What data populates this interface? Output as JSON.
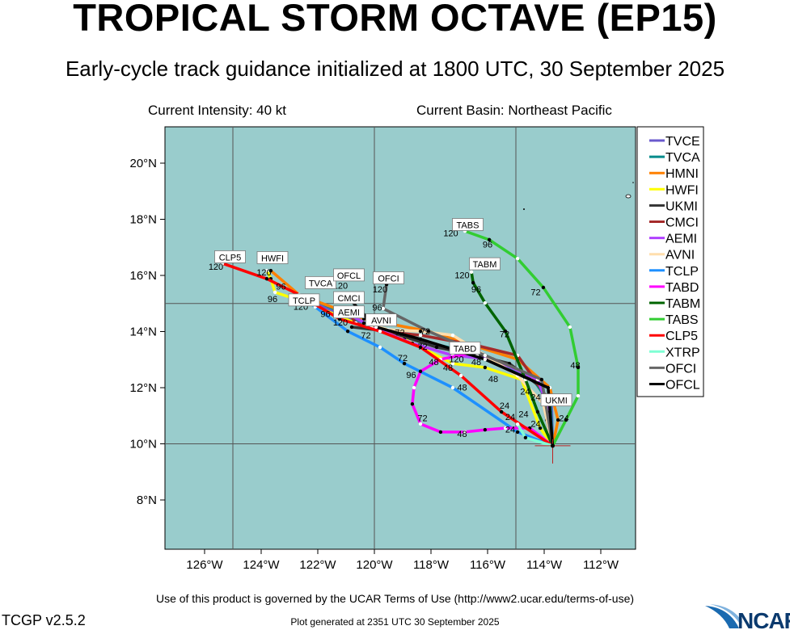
{
  "header": {
    "title": "TROPICAL STORM OCTAVE (EP15)",
    "subtitle": "Early-cycle track guidance initialized at 1800 UTC, 30 September 2025",
    "intensity": "Current Intensity: 40 kt",
    "basin": "Current Basin: Northeast Pacific"
  },
  "footer": {
    "terms": "Use of this product is governed by the UCAR Terms of Use (http://www2.ucar.edu/terms-of-use)",
    "version": "TCGP v2.5.2",
    "generated": "Plot generated at 2351 UTC   30 September 2025",
    "logo": "NCAR"
  },
  "chart_data": {
    "type": "map-track",
    "lon_range_W": [
      127.4,
      110.8
    ],
    "lat_range_N": [
      6.25,
      21.3
    ],
    "grid_lon_W": [
      125,
      120,
      115
    ],
    "grid_lat_N": [
      15,
      10
    ],
    "x_ticks": [
      {
        "v": 126,
        "label": "126°W"
      },
      {
        "v": 124,
        "label": "124°W"
      },
      {
        "v": 122,
        "label": "122°W"
      },
      {
        "v": 120,
        "label": "120°W"
      },
      {
        "v": 118,
        "label": "118°W"
      },
      {
        "v": 116,
        "label": "116°W"
      },
      {
        "v": 114,
        "label": "114°W"
      },
      {
        "v": 112,
        "label": "112°W"
      }
    ],
    "y_ticks": [
      {
        "v": 20,
        "label": "20°N"
      },
      {
        "v": 18,
        "label": "18°N"
      },
      {
        "v": 16,
        "label": "16°N"
      },
      {
        "v": 14,
        "label": "14°N"
      },
      {
        "v": 12,
        "label": "12°N"
      },
      {
        "v": 10,
        "label": "10°N"
      },
      {
        "v": 8,
        "label": "8°N"
      }
    ],
    "ocean_color": "#99cccc",
    "storm_position": [
      113.7,
      9.93
    ],
    "legend_position": "right",
    "series": [
      {
        "name": "TVCE",
        "color": "#6a5acd",
        "track": [
          [
            113.7,
            9.93
          ],
          [
            113.74,
            11.42
          ],
          [
            114.37,
            12.29
          ],
          [
            116.09,
            13.06
          ],
          [
            118.09,
            13.58
          ],
          [
            119.8,
            14.01
          ],
          [
            121.23,
            14.59
          ],
          [
            122.09,
            15.02
          ]
        ]
      },
      {
        "name": "TVCA",
        "color": "#008b8b",
        "track": [
          [
            113.7,
            9.93
          ],
          [
            113.78,
            11.4
          ],
          [
            114.4,
            12.32
          ],
          [
            116.1,
            13.1
          ],
          [
            118.1,
            13.62
          ],
          [
            119.8,
            14.05
          ],
          [
            121.2,
            14.7
          ],
          [
            122.23,
            15.17
          ]
        ]
      },
      {
        "name": "HMNI",
        "color": "#ff8000",
        "track": [
          [
            113.7,
            9.93
          ],
          [
            113.51,
            10.85
          ],
          [
            113.8,
            12.0
          ],
          [
            114.94,
            13.01
          ],
          [
            118.09,
            14.01
          ],
          [
            120.37,
            14.45
          ],
          [
            122.66,
            15.31
          ],
          [
            123.66,
            16.17
          ]
        ]
      },
      {
        "name": "HWFI",
        "color": "#ffff00",
        "track": [
          [
            113.7,
            9.93
          ],
          [
            114.14,
            10.56
          ],
          [
            114.8,
            12.29
          ],
          [
            116.09,
            12.72
          ],
          [
            117.23,
            12.86
          ],
          [
            118.94,
            13.73
          ],
          [
            120.66,
            14.3
          ],
          [
            122.37,
            15.02
          ],
          [
            123.51,
            15.4
          ],
          [
            123.66,
            15.88
          ],
          [
            123.8,
            16.17
          ]
        ]
      },
      {
        "name": "UKMI",
        "color": "#333333",
        "track": [
          [
            113.7,
            9.93
          ],
          [
            113.91,
            10.85
          ],
          [
            114.09,
            12.0
          ],
          [
            115.23,
            12.86
          ],
          [
            116.37,
            13.15
          ],
          [
            117.8,
            13.44
          ],
          [
            119.51,
            14.01
          ],
          [
            120.8,
            14.16
          ]
        ]
      },
      {
        "name": "CMCI",
        "color": "#a52a2a",
        "track": [
          [
            113.7,
            9.93
          ],
          [
            113.94,
            11.71
          ],
          [
            114.94,
            13.15
          ],
          [
            116.37,
            13.5
          ],
          [
            118.37,
            13.87
          ],
          [
            119.8,
            14.01
          ],
          [
            120.66,
            14.3
          ],
          [
            120.94,
            14.73
          ]
        ]
      },
      {
        "name": "AEMI",
        "color": "#b041ff",
        "track": [
          [
            113.7,
            9.93
          ],
          [
            113.8,
            11.14
          ],
          [
            114.23,
            12.29
          ],
          [
            115.8,
            13.01
          ],
          [
            117.23,
            13.15
          ],
          [
            118.66,
            13.58
          ],
          [
            120.09,
            14.16
          ],
          [
            121.09,
            14.73
          ]
        ]
      },
      {
        "name": "AVNI",
        "color": "#ffdead",
        "track": [
          [
            113.7,
            9.93
          ],
          [
            114.03,
            11.42
          ],
          [
            114.94,
            12.43
          ],
          [
            116.09,
            13.15
          ],
          [
            117.23,
            13.87
          ],
          [
            118.37,
            14.01
          ],
          [
            119.51,
            14.07
          ],
          [
            120.37,
            14.3
          ]
        ]
      },
      {
        "name": "TCLP",
        "color": "#1e90ff",
        "track": [
          [
            113.7,
            9.93
          ],
          [
            114.94,
            10.42
          ],
          [
            117.23,
            12.0
          ],
          [
            118.94,
            12.86
          ],
          [
            119.8,
            13.44
          ],
          [
            120.94,
            14.01
          ],
          [
            122.09,
            14.88
          ],
          [
            122.23,
            14.97
          ]
        ]
      },
      {
        "name": "TABD",
        "color": "#ff00ff",
        "track": [
          [
            113.7,
            9.93
          ],
          [
            114.51,
            10.56
          ],
          [
            115.37,
            10.56
          ],
          [
            116.09,
            10.5
          ],
          [
            116.8,
            10.42
          ],
          [
            117.66,
            10.42
          ],
          [
            118.37,
            10.71
          ],
          [
            118.66,
            11.42
          ],
          [
            118.6,
            12.0
          ],
          [
            118.37,
            12.58
          ],
          [
            117.66,
            13.01
          ],
          [
            116.66,
            13.21
          ]
        ]
      },
      {
        "name": "TABM",
        "color": "#006400",
        "track": [
          [
            113.7,
            9.93
          ],
          [
            114.23,
            11.14
          ],
          [
            114.66,
            12.29
          ],
          [
            115.37,
            14.01
          ],
          [
            116.09,
            15.02
          ],
          [
            116.51,
            15.74
          ],
          [
            116.57,
            16.12
          ]
        ]
      },
      {
        "name": "TABS",
        "color": "#32cd32",
        "track": [
          [
            113.7,
            9.93
          ],
          [
            113.23,
            10.85
          ],
          [
            112.8,
            11.71
          ],
          [
            112.8,
            12.72
          ],
          [
            113.09,
            14.16
          ],
          [
            114.03,
            15.57
          ],
          [
            114.94,
            16.6
          ],
          [
            115.94,
            17.27
          ],
          [
            116.8,
            17.58
          ]
        ]
      },
      {
        "name": "CLP5",
        "color": "#ff0000",
        "track": [
          [
            113.7,
            9.93
          ],
          [
            115.51,
            11.14
          ],
          [
            116.94,
            12.43
          ],
          [
            118.37,
            13.44
          ],
          [
            119.8,
            14.01
          ],
          [
            121.23,
            14.45
          ],
          [
            122.66,
            15.31
          ],
          [
            123.8,
            15.88
          ],
          [
            125.37,
            16.43
          ]
        ]
      },
      {
        "name": "XTRP",
        "color": "#7fffd4",
        "track": [
          [
            113.7,
            9.93
          ],
          [
            114.66,
            10.22
          ],
          [
            114.94,
            10.7
          ]
        ]
      },
      {
        "name": "OFCI",
        "color": "#666666",
        "track": [
          [
            113.7,
            9.93
          ],
          [
            114.09,
            12.29
          ],
          [
            116.09,
            13.15
          ],
          [
            118.09,
            14.01
          ],
          [
            119.69,
            14.82
          ],
          [
            119.57,
            15.68
          ]
        ]
      },
      {
        "name": "OFCL",
        "color": "#000000",
        "track": [
          [
            113.7,
            9.93
          ],
          [
            113.86,
            12.0
          ],
          [
            116.09,
            13.01
          ],
          [
            118.37,
            13.73
          ],
          [
            119.94,
            14.16
          ],
          [
            120.94,
            15.22
          ]
        ]
      }
    ],
    "model_labels": [
      {
        "text": "CLP5",
        "lon": 125.1,
        "lat": 16.65
      },
      {
        "text": "HWFI",
        "lon": 123.6,
        "lat": 16.62
      },
      {
        "text": "TVCA",
        "lon": 121.9,
        "lat": 15.5
      },
      {
        "text": "TCLP",
        "lon": 122.2,
        "lat": 15.17
      },
      {
        "text": "OFCL",
        "lon": 120.9,
        "lat": 15.6
      },
      {
        "text": "CMCI",
        "lon": 120.9,
        "lat": 15.05
      },
      {
        "text": "AEMI",
        "lon": 120.9,
        "lat": 14.8
      },
      {
        "text": "AVNI",
        "lon": 120.1,
        "lat": 14.4
      },
      {
        "text": "OFCI",
        "lon": 119.5,
        "lat": 15.9
      },
      {
        "text": "TABS",
        "lon": 116.7,
        "lat": 17.8
      },
      {
        "text": "TABM",
        "lon": 116.1,
        "lat": 16.4
      },
      {
        "text": "TABD",
        "lon": 116.8,
        "lat": 13.4
      },
      {
        "text": "UKMI",
        "lon": 113.8,
        "lat": 11.55
      }
    ],
    "hour_labels": [
      {
        "text": "120",
        "lon": 125.6,
        "lat": 16.2
      },
      {
        "text": "120",
        "lon": 123.9,
        "lat": 16.0
      },
      {
        "text": "96",
        "lon": 123.3,
        "lat": 15.5
      },
      {
        "text": "96",
        "lon": 123.6,
        "lat": 15.05
      },
      {
        "text": "120",
        "lon": 122.6,
        "lat": 14.95
      },
      {
        "text": "96",
        "lon": 121.9,
        "lat": 14.75
      },
      {
        "text": "120",
        "lon": 121.2,
        "lat": 15.3
      },
      {
        "text": "120",
        "lon": 121.2,
        "lat": 14.5
      },
      {
        "text": "120",
        "lon": 119.8,
        "lat": 15.45
      },
      {
        "text": "96",
        "lon": 119.9,
        "lat": 14.75
      },
      {
        "text": "72",
        "lon": 120.3,
        "lat": 13.75
      },
      {
        "text": "72",
        "lon": 119.1,
        "lat": 13.85
      },
      {
        "text": "72",
        "lon": 118.2,
        "lat": 13.9
      },
      {
        "text": "72",
        "lon": 118.3,
        "lat": 13.35
      },
      {
        "text": "72",
        "lon": 119.0,
        "lat": 12.95
      },
      {
        "text": "96",
        "lon": 118.7,
        "lat": 12.35
      },
      {
        "text": "48",
        "lon": 117.9,
        "lat": 12.8
      },
      {
        "text": "48",
        "lon": 117.4,
        "lat": 12.6
      },
      {
        "text": "48",
        "lon": 116.9,
        "lat": 11.9
      },
      {
        "text": "48",
        "lon": 115.8,
        "lat": 12.2
      },
      {
        "text": "120",
        "lon": 117.1,
        "lat": 13.05
      },
      {
        "text": "48",
        "lon": 116.4,
        "lat": 12.8
      },
      {
        "text": "72",
        "lon": 118.3,
        "lat": 10.8
      },
      {
        "text": "48",
        "lon": 116.9,
        "lat": 10.25
      },
      {
        "text": "24",
        "lon": 115.2,
        "lat": 10.4
      },
      {
        "text": "24",
        "lon": 115.2,
        "lat": 10.85
      },
      {
        "text": "24",
        "lon": 115.4,
        "lat": 11.25
      },
      {
        "text": "24",
        "lon": 114.9,
        "lat": 10.95
      },
      {
        "text": "24",
        "lon": 114.3,
        "lat": 10.6
      },
      {
        "text": "24",
        "lon": 113.3,
        "lat": 10.8
      },
      {
        "text": "24",
        "lon": 114.3,
        "lat": 11.55
      },
      {
        "text": "24",
        "lon": 114.5,
        "lat": 11.75
      },
      {
        "text": "48",
        "lon": 112.9,
        "lat": 12.55
      },
      {
        "text": "72",
        "lon": 114.3,
        "lat": 15.3
      },
      {
        "text": "72",
        "lon": 115.4,
        "lat": 13.8
      },
      {
        "text": "96",
        "lon": 116.4,
        "lat": 15.4
      },
      {
        "text": "120",
        "lon": 116.9,
        "lat": 15.9
      },
      {
        "text": "96",
        "lon": 116.0,
        "lat": 17.0
      },
      {
        "text": "120",
        "lon": 117.3,
        "lat": 17.4
      }
    ]
  }
}
